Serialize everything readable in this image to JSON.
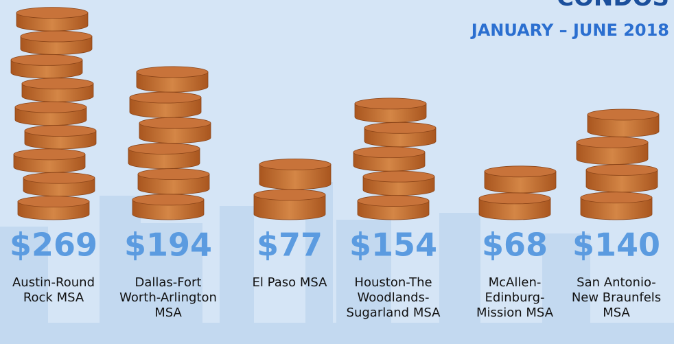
{
  "chart_data": {
    "type": "bar",
    "title": "CONDOS",
    "subtitle": "JANUARY – JUNE 2018",
    "categories": [
      "Austin-Round Rock MSA",
      "Dallas-Fort Worth-Arlington MSA",
      "El Paso MSA",
      "Houston-The Woodlands-Sugarland MSA",
      "McAllen-Edinburg-Mission MSA",
      "San Antonio-New Braunfels MSA"
    ],
    "values": [
      269,
      194,
      77,
      154,
      68,
      140
    ],
    "value_labels": [
      "$269",
      "$194",
      "$77",
      "$154",
      "$68",
      "$140"
    ],
    "color": "#c8733a"
  }
}
